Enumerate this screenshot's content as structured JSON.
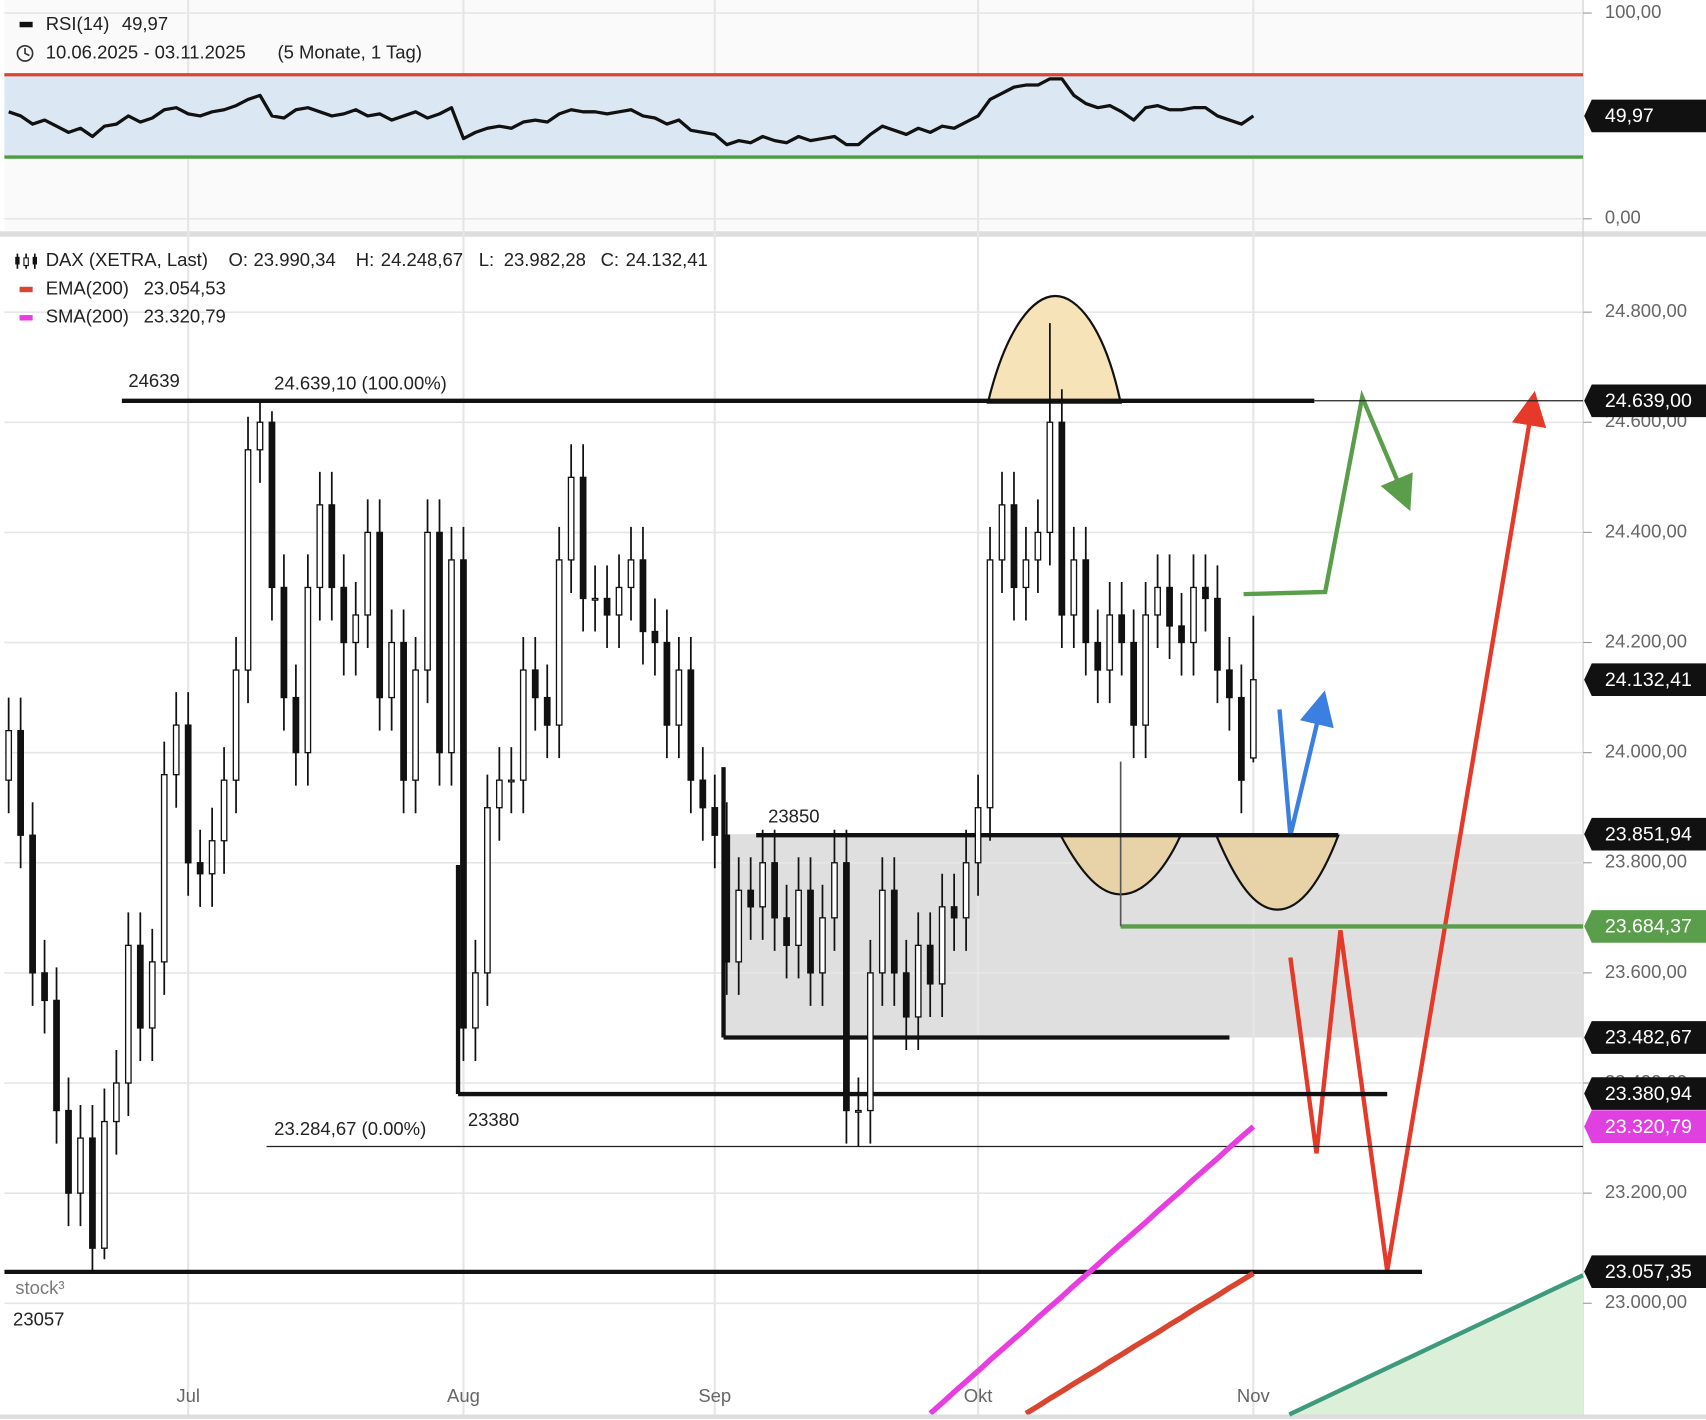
{
  "chart_data": {
    "type": "candlestick",
    "title": "DAX (XETRA, Last)",
    "period": "10.06.2025 - 03.11.2025",
    "period_note": "(5 Monate, 1 Tag)",
    "watermark": "stock³",
    "grid": true,
    "ohlc_readout": [
      {
        "key": "O:",
        "value": 23990.34,
        "label": "23.990,34"
      },
      {
        "key": "H:",
        "value": 24248.67,
        "label": "24.248,67"
      },
      {
        "key": "L:",
        "value": 23982.28,
        "label": "23.982,28"
      },
      {
        "key": "C:",
        "value": 24132.41,
        "label": "24.132,41"
      }
    ],
    "open": [
      23950,
      24040,
      23850,
      23600,
      23550,
      23350,
      23200,
      23300,
      23100,
      23330,
      23400,
      23650,
      23500,
      23620,
      23960,
      24050,
      23800,
      23780,
      23840,
      23950,
      24150,
      24550,
      24600,
      24300,
      24100,
      24000,
      24300,
      24450,
      24300,
      24200,
      24250,
      24400,
      24100,
      24200,
      23950,
      24150,
      24400,
      24000,
      24350,
      23500,
      23600,
      23900,
      23950,
      23950,
      24150,
      24100,
      24050,
      24350,
      24500,
      24280,
      24280,
      24250,
      24300,
      24350,
      24220,
      24200,
      24050,
      24150,
      23950,
      23900,
      23850,
      23620,
      23750,
      23720,
      23800,
      23700,
      23650,
      23750,
      23600,
      23700,
      23800,
      23350,
      23350,
      23600,
      23750,
      23600,
      23520,
      23650,
      23580,
      23720,
      23700,
      23800,
      23900,
      24350,
      24450,
      24300,
      24350,
      24400,
      24600,
      24250,
      24350,
      24200,
      24150,
      24250,
      24200,
      24050,
      24250,
      24300,
      24230,
      24200,
      24300,
      24280,
      24150,
      24100,
      23990.34
    ],
    "high": [
      24100,
      24100,
      23910,
      23660,
      23610,
      23410,
      23360,
      23360,
      23390,
      23460,
      23710,
      23710,
      23680,
      24020,
      24110,
      24110,
      23860,
      23900,
      24010,
      24210,
      24610,
      24639,
      24620,
      24360,
      24160,
      24360,
      24510,
      24510,
      24360,
      24310,
      24460,
      24460,
      24260,
      24260,
      24210,
      24460,
      24460,
      24410,
      24410,
      23660,
      23960,
      24010,
      24010,
      24210,
      24210,
      24160,
      24410,
      24560,
      24560,
      24340,
      24340,
      24360,
      24410,
      24410,
      24280,
      24260,
      24210,
      24210,
      24010,
      23960,
      23910,
      23810,
      23810,
      23860,
      23860,
      23760,
      23810,
      23810,
      23760,
      23860,
      23860,
      23410,
      23660,
      23810,
      23810,
      23660,
      23710,
      23710,
      23780,
      23780,
      23860,
      23960,
      24410,
      24510,
      24510,
      24410,
      24460,
      24780,
      24660,
      24410,
      24410,
      24260,
      24310,
      24310,
      24260,
      24310,
      24360,
      24360,
      24290,
      24360,
      24360,
      24340,
      24210,
      24160,
      24248.67
    ],
    "low": [
      23890,
      23790,
      23540,
      23490,
      23290,
      23140,
      23140,
      23057,
      23080,
      23270,
      23340,
      23440,
      23440,
      23560,
      23900,
      23740,
      23720,
      23720,
      23780,
      23890,
      24090,
      24490,
      24240,
      24040,
      23940,
      23940,
      24240,
      24240,
      24140,
      24140,
      24190,
      24040,
      24040,
      23890,
      23890,
      24090,
      23940,
      23940,
      23440,
      23440,
      23540,
      23840,
      23890,
      23890,
      24040,
      23990,
      23990,
      24290,
      24220,
      24220,
      24190,
      24190,
      24240,
      24160,
      24140,
      23990,
      23990,
      23890,
      23840,
      23790,
      23560,
      23560,
      23660,
      23660,
      23640,
      23590,
      23590,
      23540,
      23540,
      23640,
      23290,
      23285,
      23290,
      23540,
      23540,
      23460,
      23460,
      23520,
      23520,
      23640,
      23640,
      23740,
      23840,
      24290,
      24240,
      24240,
      24290,
      24340,
      24190,
      24190,
      24140,
      24090,
      24090,
      24140,
      23990,
      23990,
      24190,
      24170,
      24140,
      24140,
      24220,
      24090,
      24040,
      23890,
      23982.28
    ],
    "close": [
      24040,
      23850,
      23600,
      23550,
      23350,
      23200,
      23300,
      23100,
      23330,
      23400,
      23650,
      23500,
      23620,
      23960,
      24050,
      23800,
      23780,
      23840,
      23950,
      24150,
      24550,
      24600,
      24300,
      24100,
      24000,
      24300,
      24450,
      24300,
      24200,
      24250,
      24400,
      24100,
      24200,
      23950,
      24150,
      24400,
      24000,
      24350,
      23500,
      23600,
      23900,
      23950,
      23950,
      24150,
      24100,
      24050,
      24350,
      24500,
      24280,
      24280,
      24250,
      24300,
      24350,
      24220,
      24200,
      24050,
      24150,
      23950,
      23900,
      23850,
      23620,
      23750,
      23720,
      23800,
      23700,
      23650,
      23750,
      23600,
      23700,
      23800,
      23350,
      23350,
      23600,
      23750,
      23600,
      23520,
      23650,
      23580,
      23720,
      23700,
      23800,
      23900,
      24350,
      24450,
      24300,
      24350,
      24400,
      24600,
      24250,
      24350,
      24200,
      24150,
      24250,
      24200,
      24050,
      24250,
      24300,
      24230,
      24200,
      24300,
      24280,
      24150,
      24100,
      23950,
      24132.41
    ],
    "xlim": [
      -0.36,
      131.55
    ],
    "xticks": [
      {
        "value": 15,
        "label": "Jul"
      },
      {
        "value": 38,
        "label": "Aug"
      },
      {
        "value": 59,
        "label": "Sep"
      },
      {
        "value": 81,
        "label": "Okt"
      },
      {
        "value": 104,
        "label": "Nov"
      }
    ],
    "ylim": [
      22798,
      24936
    ],
    "yticks": [
      {
        "value": 23000,
        "label": "23.000,00"
      },
      {
        "value": 23200,
        "label": "23.200,00"
      },
      {
        "value": 23400,
        "label": "23.400,00"
      },
      {
        "value": 23600,
        "label": "23.600,00"
      },
      {
        "value": 23800,
        "label": "23.800,00"
      },
      {
        "value": 24000,
        "label": "24.000,00"
      },
      {
        "value": 24200,
        "label": "24.200,00"
      },
      {
        "value": 24400,
        "label": "24.400,00"
      },
      {
        "value": 24600,
        "label": "24.600,00"
      },
      {
        "value": 24800,
        "label": "24.800,00"
      }
    ],
    "series": [
      {
        "name": "EMA(200)",
        "color": "#d9452f",
        "value_label": "23.054,53",
        "values": [
          null,
          null,
          null,
          null,
          null,
          null,
          null,
          null,
          null,
          null,
          null,
          null,
          null,
          null,
          null,
          null,
          null,
          null,
          null,
          null,
          null,
          null,
          null,
          null,
          null,
          null,
          null,
          null,
          null,
          null,
          null,
          null,
          null,
          null,
          null,
          null,
          null,
          null,
          null,
          null,
          null,
          null,
          null,
          null,
          null,
          null,
          null,
          null,
          null,
          null,
          null,
          null,
          null,
          null,
          null,
          null,
          null,
          null,
          null,
          null,
          null,
          null,
          null,
          null,
          null,
          null,
          null,
          null,
          null,
          null,
          null,
          null,
          null,
          null,
          null,
          null,
          null,
          null,
          null,
          null,
          null,
          null,
          null,
          null,
          null,
          22800,
          22813,
          22827,
          22840,
          22854,
          22867,
          22880,
          22894,
          22907,
          22921,
          22934,
          22947,
          22961,
          22974,
          22988,
          23001,
          23014,
          23028,
          23041,
          23054.53
        ]
      },
      {
        "name": "SMA(200)",
        "color": "#e83ee0",
        "value_label": "23.320,79",
        "values": [
          null,
          null,
          null,
          null,
          null,
          null,
          null,
          null,
          null,
          null,
          null,
          null,
          null,
          null,
          null,
          null,
          null,
          null,
          null,
          null,
          null,
          null,
          null,
          null,
          null,
          null,
          null,
          null,
          null,
          null,
          null,
          null,
          null,
          null,
          null,
          null,
          null,
          null,
          null,
          null,
          null,
          null,
          null,
          null,
          null,
          null,
          null,
          null,
          null,
          null,
          null,
          null,
          null,
          null,
          null,
          null,
          null,
          null,
          null,
          null,
          null,
          null,
          null,
          null,
          null,
          null,
          null,
          null,
          null,
          null,
          null,
          null,
          null,
          null,
          null,
          null,
          null,
          22800,
          22819,
          22839,
          22858,
          22877,
          22897,
          22916,
          22935,
          22954,
          22974,
          22993,
          23012,
          23032,
          23051,
          23070,
          23090,
          23109,
          23128,
          23147,
          23167,
          23186,
          23205,
          23225,
          23244,
          23263,
          23283,
          23302,
          23320.79
        ]
      }
    ],
    "rsi": {
      "name": "RSI(14)",
      "value_label": "49,97",
      "color": "#111111",
      "values": [
        52,
        50,
        46,
        48,
        45,
        42,
        44,
        40,
        45,
        46,
        50,
        47,
        49,
        53,
        54,
        51,
        50,
        52,
        53,
        55,
        58,
        60,
        50,
        49,
        53,
        54,
        52,
        50,
        51,
        53,
        50,
        51,
        48,
        50,
        52,
        49,
        51,
        54,
        39,
        42,
        44,
        45,
        44,
        47,
        48,
        47,
        51,
        53,
        52,
        52,
        51,
        52,
        53,
        50,
        49,
        46,
        48,
        43,
        42,
        41,
        36,
        38,
        37,
        40,
        38,
        37,
        40,
        38,
        39,
        40,
        36,
        36,
        41,
        45,
        43,
        41,
        44,
        42,
        45,
        44,
        47,
        50,
        58,
        61,
        64,
        65,
        65,
        68,
        68,
        60,
        56,
        54,
        55,
        52,
        48,
        54,
        55,
        53,
        53,
        54,
        54,
        50,
        48,
        46,
        49.97
      ],
      "ylim": [
        -5.8,
        106.3
      ],
      "yticks": [
        {
          "value": 0,
          "label": "0,00"
        },
        {
          "value": 100,
          "label": "100,00"
        }
      ],
      "upper": 70,
      "lower": 30,
      "upper_color": "#d9452f",
      "lower_color": "#4a9e3f",
      "band_color": "#dbe8f3",
      "badge": {
        "value": 49.97,
        "label": "49,97"
      }
    },
    "levels": [
      {
        "value": 24639,
        "label": "24639"
      },
      {
        "value": 23850,
        "label": "23850"
      },
      {
        "value": 23380,
        "label": "23380"
      },
      {
        "value": 23057,
        "label": "23057"
      }
    ],
    "fib": [
      {
        "value": 24639.1,
        "label": "24.639,10 (100.00%)"
      },
      {
        "value": 23284.67,
        "label": "23.284,67 (0.00%)"
      }
    ],
    "price_labels": [
      {
        "value": 24639.0,
        "label": "24.639,00",
        "color": "#111111"
      },
      {
        "value": 24132.41,
        "label": "24.132,41",
        "color": "#111111"
      },
      {
        "value": 23851.94,
        "label": "23.851,94",
        "color": "#111111"
      },
      {
        "value": 23684.37,
        "label": "23.684,37",
        "color": "#5a9e4b"
      },
      {
        "value": 23482.67,
        "label": "23.482,67",
        "color": "#111111"
      },
      {
        "value": 23380.94,
        "label": "23.380,94",
        "color": "#111111"
      },
      {
        "value": 23320.79,
        "label": "23.320,79",
        "color": "#e040e0"
      },
      {
        "value": 23057.35,
        "label": "23.057,35",
        "color": "#111111"
      }
    ]
  }
}
